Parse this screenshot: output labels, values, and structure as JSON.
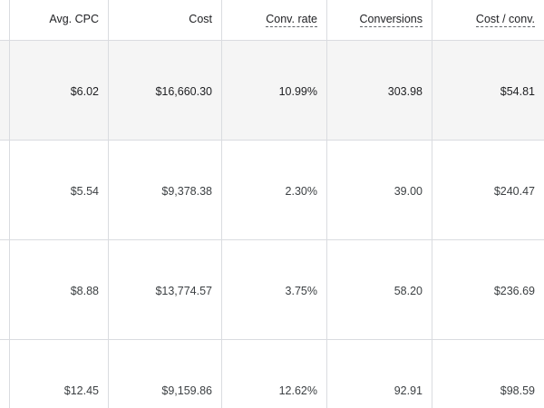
{
  "table": {
    "columns": [
      {
        "label": "Avg. CPC",
        "dotted": false
      },
      {
        "label": "Cost",
        "dotted": false
      },
      {
        "label": "Conv. rate",
        "dotted": true
      },
      {
        "label": "Conversions",
        "dotted": true
      },
      {
        "label": "Cost / conv.",
        "dotted": true
      }
    ],
    "rows": [
      {
        "cells": [
          "$6.02",
          "$16,660.30",
          "10.99%",
          "303.98",
          "$54.81"
        ]
      },
      {
        "cells": [
          "$5.54",
          "$9,378.38",
          "2.30%",
          "39.00",
          "$240.47"
        ]
      },
      {
        "cells": [
          "$8.88",
          "$13,774.57",
          "3.75%",
          "58.20",
          "$236.69"
        ]
      },
      {
        "cells": [
          "$12.45",
          "$9,159.86",
          "12.62%",
          "92.91",
          "$98.59"
        ]
      }
    ]
  }
}
